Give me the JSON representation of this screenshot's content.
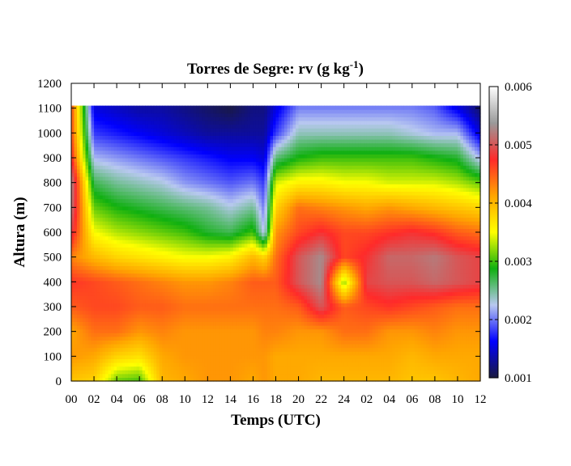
{
  "chart_data": {
    "type": "heatmap",
    "title": "Torres de Segre: rv (g kg",
    "title_sup": "-1",
    "title_close": ")",
    "xlabel": "Temps (UTC)",
    "ylabel": "Altura (m)",
    "x_ticks": [
      "00",
      "02",
      "04",
      "06",
      "08",
      "10",
      "12",
      "14",
      "16",
      "18",
      "20",
      "22",
      "24",
      "02",
      "04",
      "06",
      "08",
      "10",
      "12"
    ],
    "xlim": [
      0,
      36
    ],
    "ylim": [
      0,
      1200
    ],
    "y_ticks": [
      0,
      100,
      200,
      300,
      400,
      500,
      600,
      700,
      800,
      900,
      1000,
      1100,
      1200
    ],
    "data_ymax": 1110,
    "colorbar": {
      "min": 0.001,
      "max": 0.006,
      "ticks": [
        "0.001",
        "0.002",
        "0.003",
        "0.004",
        "0.005",
        "0.006"
      ],
      "colors": [
        "#1a1a40",
        "#0000ff",
        "#b8c8f0",
        "#10b010",
        "#ffff00",
        "#ffa500",
        "#ff2a2a",
        "#9a9a9a",
        "#ffffff"
      ]
    },
    "x_nodes": [
      0,
      2,
      4,
      6,
      8,
      10,
      12,
      14,
      16,
      17,
      18,
      20,
      22,
      24,
      26,
      28,
      30,
      32,
      34,
      36
    ],
    "y_nodes": [
      0,
      100,
      200,
      300,
      400,
      500,
      600,
      700,
      800,
      900,
      1000,
      1110
    ],
    "values": [
      [
        0.0039,
        0.0042,
        0.0041,
        0.0045,
        0.0047,
        0.0043,
        0.0049,
        0.0052,
        0.0053,
        0.0048,
        0.0046,
        0.0046
      ],
      [
        0.0038,
        0.0041,
        0.0044,
        0.0046,
        0.0046,
        0.004,
        0.0035,
        0.0031,
        0.0027,
        0.0022,
        0.0018,
        0.0015
      ],
      [
        0.0031,
        0.0038,
        0.0044,
        0.0046,
        0.0045,
        0.0038,
        0.0033,
        0.0029,
        0.0025,
        0.0021,
        0.0017,
        0.0014
      ],
      [
        0.003,
        0.0037,
        0.0042,
        0.0045,
        0.0044,
        0.0037,
        0.0032,
        0.0028,
        0.0024,
        0.002,
        0.0016,
        0.0013
      ],
      [
        0.004,
        0.0041,
        0.0043,
        0.0045,
        0.0043,
        0.0036,
        0.0031,
        0.0027,
        0.0023,
        0.0019,
        0.0015,
        0.0013
      ],
      [
        0.0041,
        0.0042,
        0.0042,
        0.0044,
        0.0042,
        0.0035,
        0.003,
        0.0026,
        0.0021,
        0.0018,
        0.0014,
        0.0012
      ],
      [
        0.0042,
        0.0042,
        0.0042,
        0.0044,
        0.0042,
        0.0035,
        0.0028,
        0.0025,
        0.002,
        0.0017,
        0.0013,
        0.0011
      ],
      [
        0.0042,
        0.0042,
        0.0042,
        0.0044,
        0.0043,
        0.0036,
        0.0027,
        0.0023,
        0.0019,
        0.0016,
        0.0013,
        0.001
      ],
      [
        0.0041,
        0.0042,
        0.0042,
        0.0044,
        0.0045,
        0.004,
        0.003,
        0.0025,
        0.002,
        0.0016,
        0.0013,
        0.0012
      ],
      [
        0.0042,
        0.0042,
        0.0043,
        0.0044,
        0.0045,
        0.0038,
        0.0022,
        0.002,
        0.0018,
        0.0015,
        0.0013,
        0.0012
      ],
      [
        0.0041,
        0.0041,
        0.0043,
        0.0044,
        0.0045,
        0.0044,
        0.0042,
        0.0038,
        0.0034,
        0.0026,
        0.0018,
        0.0015
      ],
      [
        0.0041,
        0.0041,
        0.0042,
        0.0045,
        0.005,
        0.005,
        0.0046,
        0.0044,
        0.0036,
        0.0029,
        0.0024,
        0.002
      ],
      [
        0.004,
        0.0041,
        0.0042,
        0.005,
        0.0053,
        0.0053,
        0.0048,
        0.0043,
        0.0036,
        0.003,
        0.0024,
        0.002
      ],
      [
        0.004,
        0.0041,
        0.0044,
        0.0045,
        0.0032,
        0.0046,
        0.0046,
        0.0042,
        0.0035,
        0.003,
        0.0024,
        0.002
      ],
      [
        0.004,
        0.0041,
        0.0044,
        0.0046,
        0.0049,
        0.0048,
        0.0046,
        0.0041,
        0.0035,
        0.003,
        0.0024,
        0.002
      ],
      [
        0.004,
        0.0041,
        0.0042,
        0.0047,
        0.005,
        0.0051,
        0.0047,
        0.0042,
        0.0034,
        0.003,
        0.0024,
        0.002
      ],
      [
        0.0039,
        0.004,
        0.0042,
        0.0046,
        0.005,
        0.0051,
        0.0048,
        0.0041,
        0.0034,
        0.003,
        0.0023,
        0.002
      ],
      [
        0.0039,
        0.0041,
        0.0043,
        0.0045,
        0.0051,
        0.0052,
        0.0047,
        0.004,
        0.0034,
        0.0029,
        0.0022,
        0.0019
      ],
      [
        0.004,
        0.0041,
        0.0042,
        0.0044,
        0.005,
        0.005,
        0.0045,
        0.0039,
        0.0033,
        0.0028,
        0.0022,
        0.0015
      ],
      [
        0.0041,
        0.0041,
        0.0042,
        0.0044,
        0.0049,
        0.0049,
        0.0044,
        0.0038,
        0.0031,
        0.0022,
        0.0015,
        0.0011
      ]
    ]
  }
}
